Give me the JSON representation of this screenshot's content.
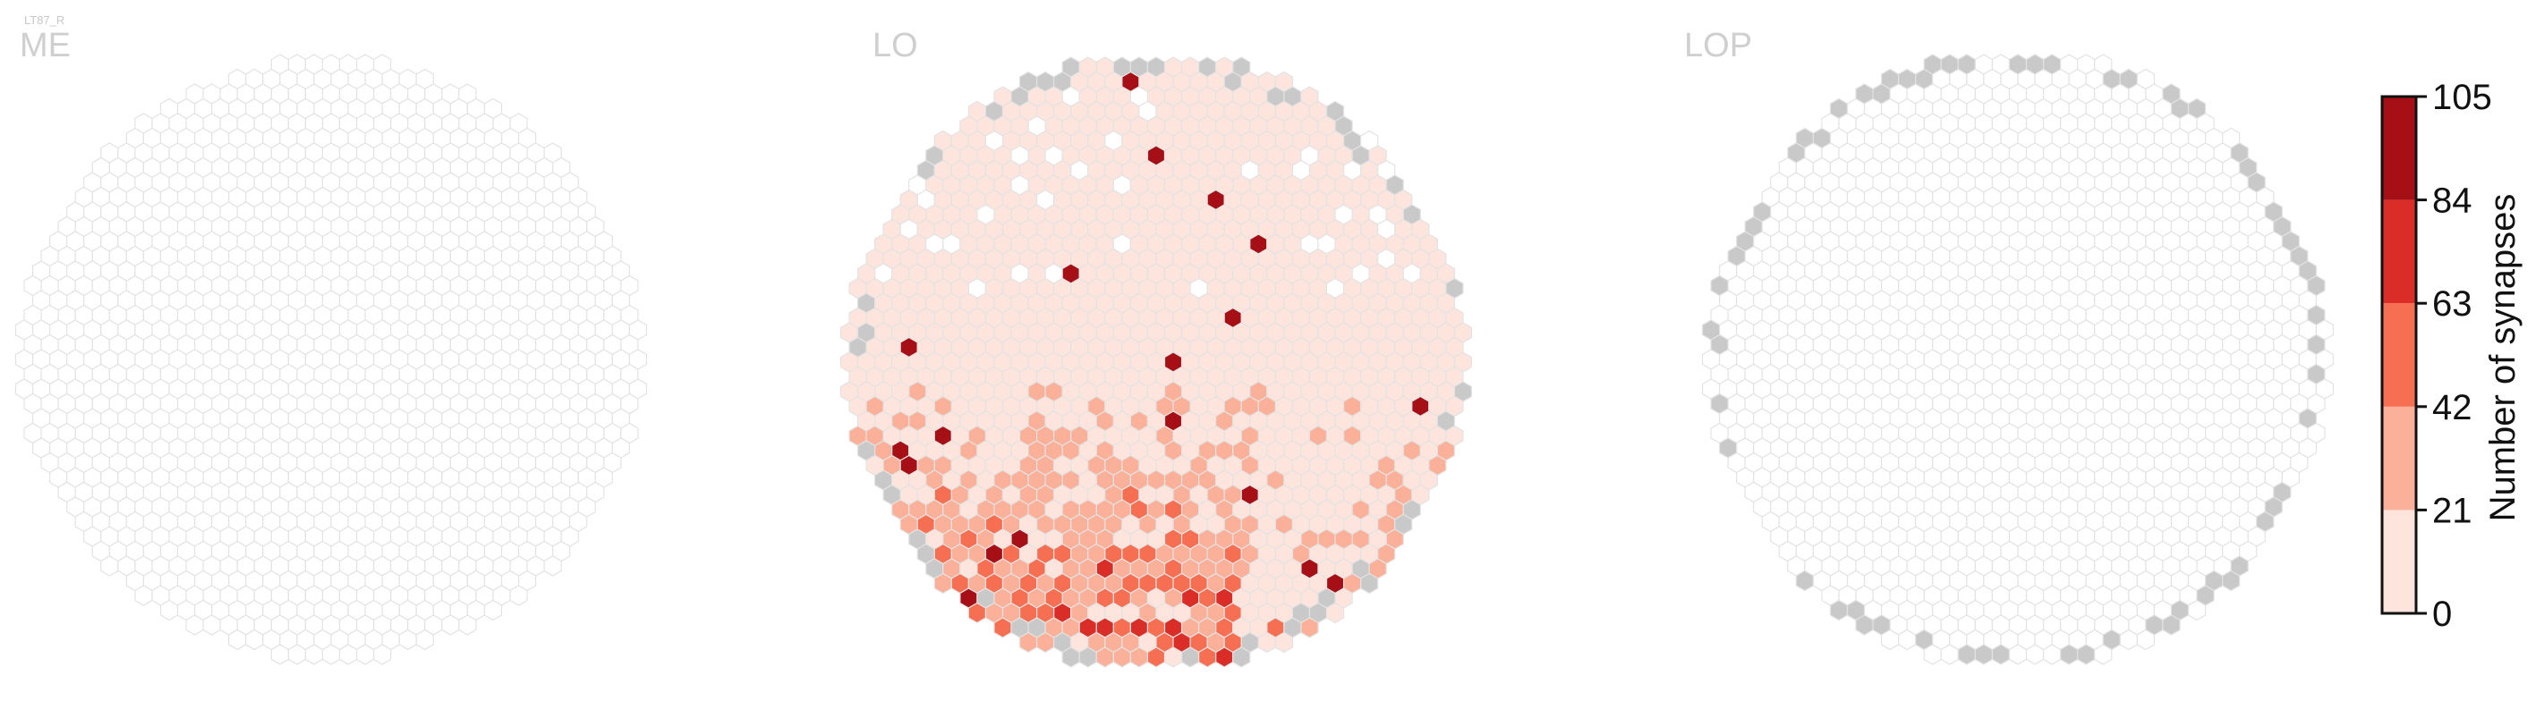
{
  "figure_label": "LT87_R",
  "chart_data": {
    "type": "heatmap",
    "panels": [
      {
        "title": "ME",
        "synapses": "none"
      },
      {
        "title": "LO",
        "synapses": "present"
      },
      {
        "title": "LOP",
        "synapses": "none"
      }
    ],
    "colorbar": {
      "label": "Number of synapses",
      "ticks": [
        0,
        21,
        42,
        63,
        84,
        105
      ],
      "range": [
        0,
        105
      ],
      "bins": [
        {
          "min": 0,
          "max": 21,
          "color": "#fde4dc"
        },
        {
          "min": 21,
          "max": 42,
          "color": "#fbb09a"
        },
        {
          "min": 42,
          "max": 63,
          "color": "#f66f52"
        },
        {
          "min": 63,
          "max": 84,
          "color": "#db2d27"
        },
        {
          "min": 84,
          "max": 105,
          "color": "#a50f15"
        }
      ]
    },
    "empty_column_color": "#ffffff",
    "outside_column_color": "#c9c9c9",
    "hex_outline_color": "#e3e3e3"
  }
}
